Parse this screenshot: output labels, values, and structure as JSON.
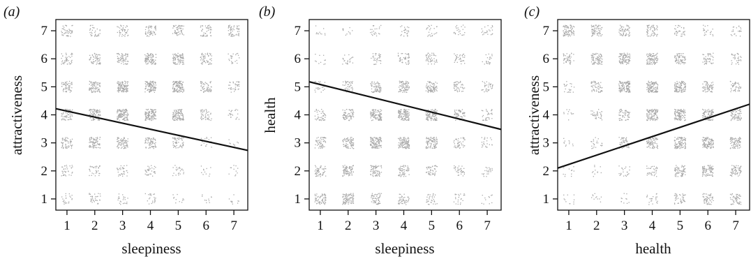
{
  "chart_data": [
    {
      "type": "scatter",
      "panel_label": "(a)",
      "xlabel": "sleepiness",
      "ylabel": "attractiveness",
      "x_ticks": [
        "1",
        "2",
        "3",
        "4",
        "5",
        "6",
        "7"
      ],
      "y_ticks": [
        "1",
        "2",
        "3",
        "4",
        "5",
        "6",
        "7"
      ],
      "xlim": [
        0.6,
        7.5
      ],
      "ylim": [
        0.6,
        7.4
      ],
      "fit_line": {
        "x": [
          0.6,
          7.5
        ],
        "y": [
          4.22,
          2.73
        ]
      },
      "point_density": [
        [
          2,
          3,
          2,
          2,
          1,
          1,
          1
        ],
        [
          3,
          3,
          3,
          3,
          2,
          1,
          1
        ],
        [
          5,
          7,
          7,
          6,
          5,
          2,
          1
        ],
        [
          6,
          8,
          10,
          10,
          9,
          4,
          2
        ],
        [
          5,
          7,
          10,
          10,
          10,
          5,
          3
        ],
        [
          4,
          5,
          6,
          8,
          8,
          5,
          2
        ],
        [
          4,
          3,
          4,
          5,
          5,
          4,
          5
        ]
      ],
      "grid": false,
      "point_color": "#a8a8a8",
      "line_color": "#111111"
    },
    {
      "type": "scatter",
      "panel_label": "(b)",
      "xlabel": "sleepiness",
      "ylabel": "health",
      "x_ticks": [
        "1",
        "2",
        "3",
        "4",
        "5",
        "6",
        "7"
      ],
      "y_ticks": [
        "1",
        "2",
        "3",
        "4",
        "5",
        "6",
        "7"
      ],
      "xlim": [
        0.6,
        7.5
      ],
      "ylim": [
        0.6,
        7.4
      ],
      "fit_line": {
        "x": [
          0.6,
          7.5
        ],
        "y": [
          5.18,
          3.48
        ]
      },
      "point_density": [
        [
          6,
          8,
          5,
          4,
          3,
          2,
          1
        ],
        [
          5,
          7,
          6,
          5,
          4,
          3,
          2
        ],
        [
          5,
          7,
          10,
          10,
          8,
          4,
          2
        ],
        [
          4,
          6,
          9,
          10,
          9,
          5,
          3
        ],
        [
          2,
          4,
          6,
          7,
          7,
          4,
          3
        ],
        [
          1,
          2,
          3,
          4,
          4,
          3,
          2
        ],
        [
          1,
          1,
          2,
          2,
          2,
          2,
          2
        ]
      ],
      "grid": false,
      "point_color": "#a8a8a8",
      "line_color": "#111111"
    },
    {
      "type": "scatter",
      "panel_label": "(c)",
      "xlabel": "health",
      "ylabel": "attractiveness",
      "x_ticks": [
        "1",
        "2",
        "3",
        "4",
        "5",
        "6",
        "7"
      ],
      "y_ticks": [
        "1",
        "2",
        "3",
        "4",
        "5",
        "6",
        "7"
      ],
      "xlim": [
        0.6,
        7.5
      ],
      "ylim": [
        0.6,
        7.4
      ],
      "fit_line": {
        "x": [
          0.6,
          7.5
        ],
        "y": [
          2.1,
          4.38
        ]
      },
      "point_density": [
        [
          1,
          1,
          1,
          2,
          4,
          5,
          5
        ],
        [
          1,
          1,
          2,
          3,
          6,
          7,
          6
        ],
        [
          1,
          2,
          4,
          7,
          9,
          9,
          7
        ],
        [
          1,
          3,
          5,
          9,
          10,
          8,
          6
        ],
        [
          2,
          5,
          10,
          10,
          9,
          6,
          4
        ],
        [
          4,
          7,
          8,
          8,
          6,
          4,
          3
        ],
        [
          7,
          6,
          5,
          5,
          3,
          2,
          2
        ]
      ],
      "grid": false,
      "point_color": "#a8a8a8",
      "line_color": "#111111"
    }
  ]
}
